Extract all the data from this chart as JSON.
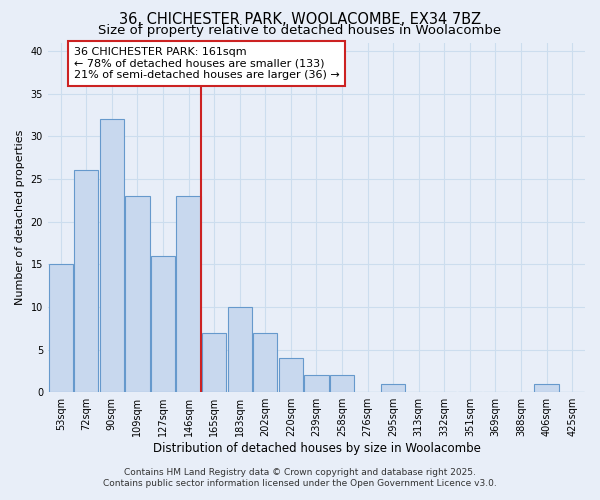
{
  "title": "36, CHICHESTER PARK, WOOLACOMBE, EX34 7BZ",
  "subtitle": "Size of property relative to detached houses in Woolacombe",
  "xlabel": "Distribution of detached houses by size in Woolacombe",
  "ylabel": "Number of detached properties",
  "categories": [
    "53sqm",
    "72sqm",
    "90sqm",
    "109sqm",
    "127sqm",
    "146sqm",
    "165sqm",
    "183sqm",
    "202sqm",
    "220sqm",
    "239sqm",
    "258sqm",
    "276sqm",
    "295sqm",
    "313sqm",
    "332sqm",
    "351sqm",
    "369sqm",
    "388sqm",
    "406sqm",
    "425sqm"
  ],
  "values": [
    15,
    26,
    32,
    23,
    16,
    23,
    7,
    10,
    7,
    4,
    2,
    2,
    0,
    1,
    0,
    0,
    0,
    0,
    0,
    1,
    0
  ],
  "bar_color": "#c8d8ee",
  "bar_edgecolor": "#6699cc",
  "vline_x_index": 6,
  "vline_color": "#cc2222",
  "annotation_text": "36 CHICHESTER PARK: 161sqm\n← 78% of detached houses are smaller (133)\n21% of semi-detached houses are larger (36) →",
  "annotation_box_edgecolor": "#cc2222",
  "annotation_box_facecolor": "#ffffff",
  "ylim": [
    0,
    41
  ],
  "yticks": [
    0,
    5,
    10,
    15,
    20,
    25,
    30,
    35,
    40
  ],
  "grid_color": "#ccddee",
  "background_color": "#e8eef8",
  "footer1": "Contains HM Land Registry data © Crown copyright and database right 2025.",
  "footer2": "Contains public sector information licensed under the Open Government Licence v3.0.",
  "title_fontsize": 10.5,
  "subtitle_fontsize": 9.5,
  "xlabel_fontsize": 8.5,
  "ylabel_fontsize": 8,
  "annotation_fontsize": 8,
  "tick_fontsize": 7,
  "footer_fontsize": 6.5
}
